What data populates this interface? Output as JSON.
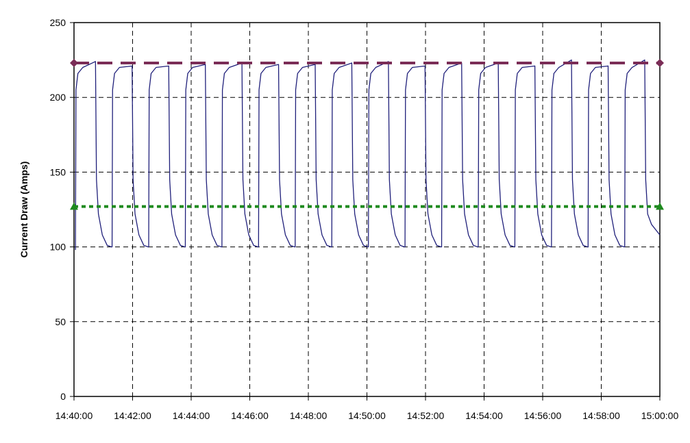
{
  "chart_data": {
    "type": "line",
    "y_label": "Current Draw (Amps)",
    "ylim": [
      0,
      250
    ],
    "yticks": [
      0,
      50,
      100,
      150,
      200,
      250
    ],
    "xlim": [
      "14:40:00",
      "15:00:00"
    ],
    "xticks": [
      "14:40:00",
      "14:42:00",
      "14:44:00",
      "14:46:00",
      "14:48:00",
      "14:50:00",
      "14:52:00",
      "14:54:00",
      "14:56:00",
      "14:58:00",
      "15:00:00"
    ],
    "grid": true,
    "series": [
      {
        "color": "#1f1f7a",
        "dash": "solid",
        "x": [
          "14:40:03",
          "14:40:04",
          "14:40:08",
          "14:40:18",
          "14:40:44",
          "14:40:46",
          "14:40:50",
          "14:40:58",
          "14:41:08",
          "14:41:17",
          "14:41:18",
          "14:41:19",
          "14:41:23",
          "14:41:33",
          "14:41:59",
          "14:42:01",
          "14:42:05",
          "14:42:13",
          "14:42:23",
          "14:42:32",
          "14:42:33",
          "14:42:34",
          "14:42:38",
          "14:42:48",
          "14:43:14",
          "14:43:16",
          "14:43:20",
          "14:43:28",
          "14:43:38",
          "14:43:47",
          "14:43:48",
          "14:43:49",
          "14:43:53",
          "14:44:03",
          "14:44:29",
          "14:44:31",
          "14:44:35",
          "14:44:43",
          "14:44:53",
          "14:45:02",
          "14:45:03",
          "14:45:04",
          "14:45:08",
          "14:45:18",
          "14:45:44",
          "14:45:46",
          "14:45:50",
          "14:45:58",
          "14:46:08",
          "14:46:17",
          "14:46:18",
          "14:46:19",
          "14:46:23",
          "14:46:33",
          "14:46:59",
          "14:47:01",
          "14:47:05",
          "14:47:13",
          "14:47:23",
          "14:47:32",
          "14:47:33",
          "14:47:34",
          "14:47:38",
          "14:47:48",
          "14:48:14",
          "14:48:16",
          "14:48:20",
          "14:48:28",
          "14:48:38",
          "14:48:47",
          "14:48:48",
          "14:48:49",
          "14:48:53",
          "14:49:03",
          "14:49:29",
          "14:49:31",
          "14:49:35",
          "14:49:43",
          "14:49:53",
          "14:50:02",
          "14:50:03",
          "14:50:04",
          "14:50:08",
          "14:50:18",
          "14:50:44",
          "14:50:46",
          "14:50:50",
          "14:50:58",
          "14:51:08",
          "14:51:17",
          "14:51:18",
          "14:51:19",
          "14:51:23",
          "14:51:33",
          "14:51:59",
          "14:52:01",
          "14:52:05",
          "14:52:13",
          "14:52:23",
          "14:52:32",
          "14:52:33",
          "14:52:34",
          "14:52:38",
          "14:52:48",
          "14:53:14",
          "14:53:16",
          "14:53:20",
          "14:53:28",
          "14:53:38",
          "14:53:47",
          "14:53:48",
          "14:53:49",
          "14:53:53",
          "14:54:03",
          "14:54:29",
          "14:54:31",
          "14:54:35",
          "14:54:43",
          "14:54:53",
          "14:55:02",
          "14:55:03",
          "14:55:04",
          "14:55:08",
          "14:55:18",
          "14:55:44",
          "14:55:46",
          "14:55:50",
          "14:55:58",
          "14:56:08",
          "14:56:17",
          "14:56:18",
          "14:56:19",
          "14:56:23",
          "14:56:33",
          "14:56:59",
          "14:57:01",
          "14:57:05",
          "14:57:13",
          "14:57:23",
          "14:57:32",
          "14:57:33",
          "14:57:34",
          "14:57:38",
          "14:57:48",
          "14:58:14",
          "14:58:16",
          "14:58:20",
          "14:58:28",
          "14:58:38",
          "14:58:47",
          "14:58:48",
          "14:58:49",
          "14:58:53",
          "14:59:03",
          "14:59:29",
          "14:59:31",
          "14:59:35",
          "14:59:43",
          "15:00:00"
        ],
        "values": [
          98,
          205,
          216,
          220,
          224,
          145,
          122,
          108,
          101,
          100,
          100,
          205,
          216,
          220,
          221,
          145,
          122,
          108,
          101,
          100,
          100,
          205,
          216,
          220,
          221,
          145,
          122,
          108,
          101,
          100,
          100,
          205,
          216,
          220,
          222,
          145,
          122,
          108,
          101,
          100,
          100,
          205,
          216,
          220,
          223,
          145,
          122,
          108,
          101,
          100,
          100,
          205,
          216,
          220,
          222,
          145,
          122,
          108,
          101,
          100,
          100,
          205,
          216,
          220,
          222,
          145,
          122,
          108,
          101,
          100,
          100,
          205,
          216,
          220,
          223,
          145,
          122,
          108,
          101,
          100,
          100,
          205,
          216,
          220,
          224,
          145,
          122,
          108,
          101,
          100,
          100,
          205,
          216,
          220,
          221,
          145,
          122,
          108,
          101,
          100,
          100,
          205,
          216,
          220,
          223,
          145,
          122,
          108,
          101,
          100,
          100,
          205,
          216,
          220,
          223,
          145,
          122,
          108,
          101,
          100,
          100,
          205,
          216,
          220,
          221,
          145,
          122,
          108,
          101,
          100,
          100,
          205,
          216,
          220,
          225,
          145,
          122,
          108,
          101,
          100,
          100,
          205,
          216,
          220,
          221,
          145,
          122,
          108,
          101,
          100,
          100,
          205,
          216,
          220,
          225,
          145,
          122,
          115,
          108
        ]
      },
      {
        "color": "#7b2d57",
        "dash": "dashed",
        "marker": "diamond",
        "x": [
          "14:40:00",
          "15:00:00"
        ],
        "values": [
          223,
          223
        ]
      },
      {
        "color": "#1e8a1e",
        "dash": "dotted",
        "marker": "triangle",
        "x": [
          "14:40:00",
          "15:00:00"
        ],
        "values": [
          127,
          127
        ]
      }
    ]
  }
}
